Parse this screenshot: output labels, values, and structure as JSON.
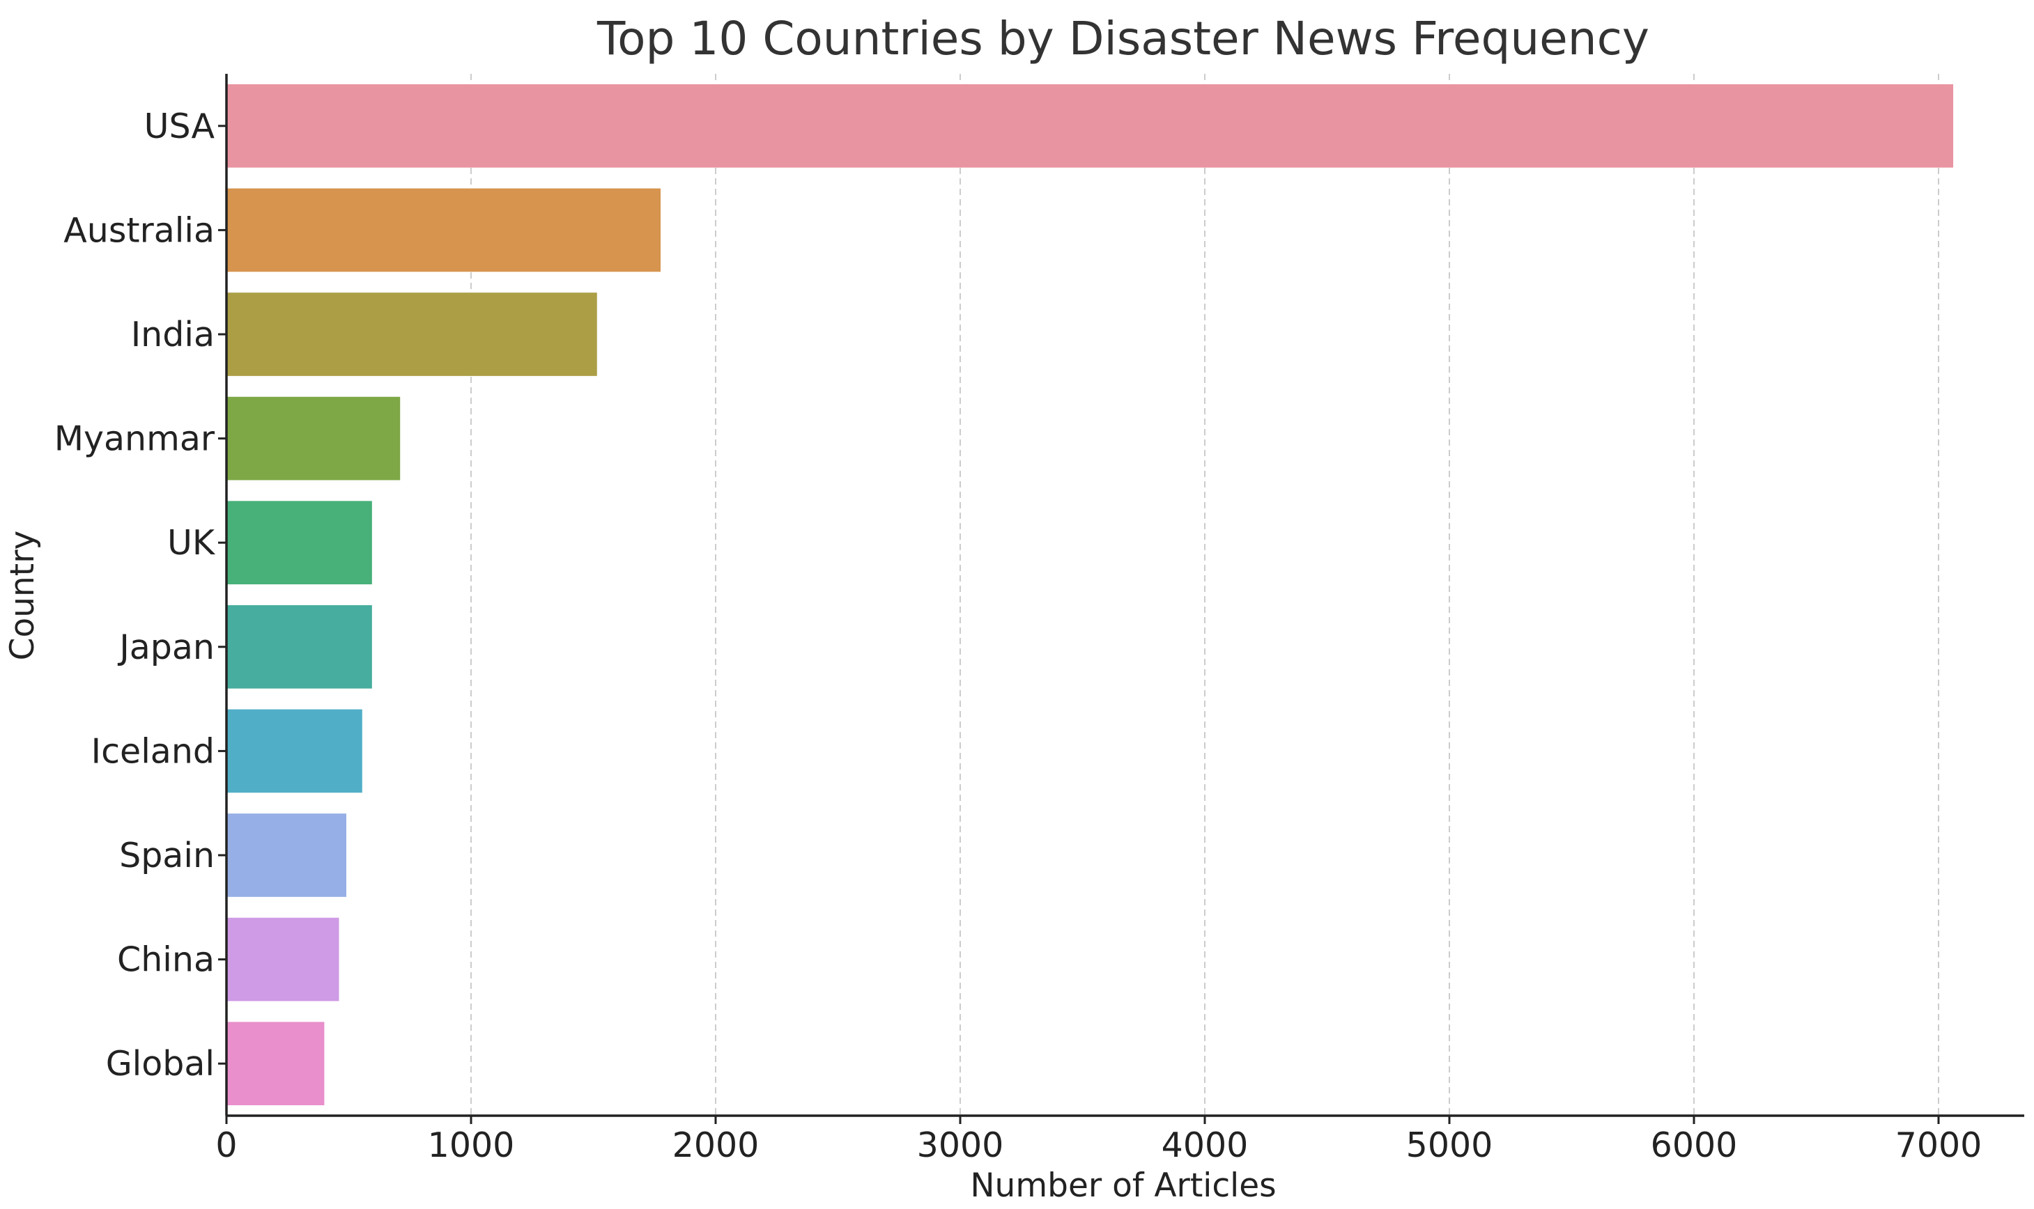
{
  "chart_data": {
    "type": "bar",
    "orientation": "horizontal",
    "title": "Top 10 Countries by Disaster News Frequency",
    "xlabel": "Number of Articles",
    "ylabel": "Country",
    "categories": [
      "USA",
      "Australia",
      "India",
      "Myanmar",
      "UK",
      "Japan",
      "Iceland",
      "Spain",
      "China",
      "Global"
    ],
    "values": [
      7060,
      1775,
      1515,
      710,
      595,
      595,
      555,
      490,
      460,
      400
    ],
    "colors": [
      "#e994a1",
      "#d6944f",
      "#ab9e45",
      "#7ea846",
      "#48b079",
      "#47ad9e",
      "#51aec7",
      "#96afe6",
      "#cf9ae6",
      "#e98fcb"
    ],
    "xticks": [
      0,
      1000,
      2000,
      3000,
      4000,
      5000,
      6000,
      7000
    ],
    "xlim": [
      0,
      7400
    ],
    "grid": "x-dashed",
    "legend": "none"
  }
}
